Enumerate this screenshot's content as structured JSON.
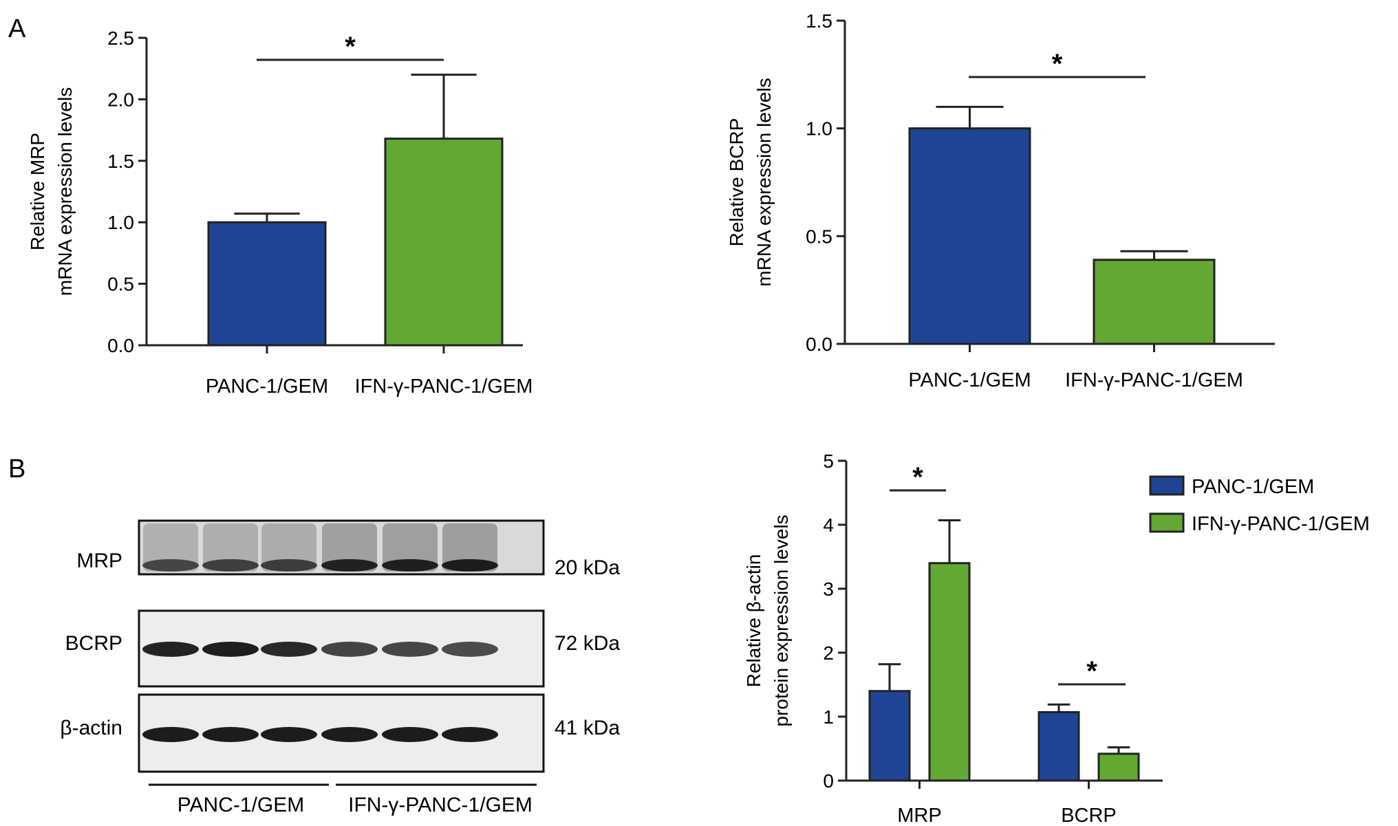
{
  "panel_labels": [
    "A",
    "B"
  ],
  "colors": {
    "panc": "#1f4496",
    "ifn": "#62a832",
    "axis": "#222222"
  },
  "chart_data": [
    {
      "id": "mrp-mrna",
      "type": "bar",
      "ylabel_lines": [
        "Relative MRP",
        "mRNA expression levels"
      ],
      "categories": [
        "PANC-1/GEM",
        "IFN-γ-PANC-1/GEM"
      ],
      "values": [
        1.0,
        1.68
      ],
      "errors": [
        0.07,
        0.52
      ],
      "ylim": [
        0,
        2.5
      ],
      "yticks": [
        "0.0",
        "0.5",
        "1.0",
        "1.5",
        "2.0",
        "2.5"
      ],
      "significance": "*"
    },
    {
      "id": "bcrp-mrna",
      "type": "bar",
      "ylabel_lines": [
        "Relative BCRP",
        "mRNA expression levels"
      ],
      "categories": [
        "PANC-1/GEM",
        "IFN-γ-PANC-1/GEM"
      ],
      "values": [
        1.0,
        0.39
      ],
      "errors": [
        0.1,
        0.04
      ],
      "ylim": [
        0,
        1.5
      ],
      "yticks": [
        "0.0",
        "0.5",
        "1.0",
        "1.5"
      ],
      "significance": "*"
    },
    {
      "id": "protein",
      "type": "bar",
      "ylabel_lines": [
        "Relative β-actin",
        "protein expression levels"
      ],
      "categories": [
        "MRP",
        "BCRP"
      ],
      "series": [
        {
          "name": "PANC-1/GEM",
          "values": [
            1.4,
            1.07
          ],
          "errors": [
            0.42,
            0.12
          ]
        },
        {
          "name": "IFN-γ-PANC-1/GEM",
          "values": [
            3.4,
            0.42
          ],
          "errors": [
            0.67,
            0.1
          ]
        }
      ],
      "ylim": [
        0,
        5
      ],
      "yticks": [
        "0",
        "1",
        "2",
        "3",
        "4",
        "5"
      ],
      "significance": [
        "*",
        "*"
      ],
      "legend_position": "top-right"
    }
  ],
  "western_blot": {
    "bands": [
      {
        "label": "MRP",
        "kda": "20 kDa",
        "intensities": [
          0.55,
          0.6,
          0.62,
          0.9,
          0.92,
          0.95
        ]
      },
      {
        "label": "BCRP",
        "kda": "72 kDa",
        "intensities": [
          0.95,
          0.98,
          0.9,
          0.7,
          0.68,
          0.65
        ]
      },
      {
        "label": "β-actin",
        "kda": "41 kDa",
        "intensities": [
          1,
          1,
          1,
          1,
          1,
          1
        ]
      }
    ],
    "groups": [
      "PANC-1/GEM",
      "IFN-γ-PANC-1/GEM"
    ]
  }
}
